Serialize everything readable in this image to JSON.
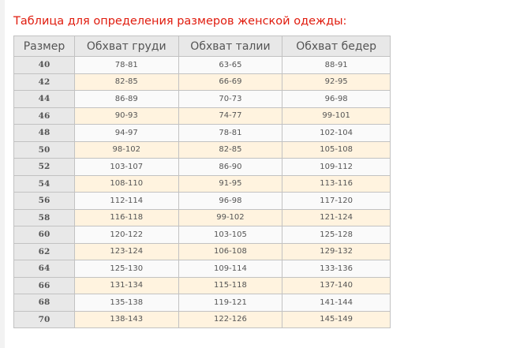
{
  "title": "Таблица для определения размеров женской одежды:",
  "colors": {
    "title": "#e01b0d",
    "header_bg": "#e8e8e8",
    "row_alt": "#fff3df",
    "row": "#fafafa"
  },
  "headers": [
    "Размер",
    "Обхват груди",
    "Обхват талии",
    "Обхват бедер"
  ],
  "rows": [
    [
      "40",
      "78-81",
      "63-65",
      "88-91"
    ],
    [
      "42",
      "82-85",
      "66-69",
      "92-95"
    ],
    [
      "44",
      "86-89",
      "70-73",
      "96-98"
    ],
    [
      "46",
      "90-93",
      "74-77",
      "99-101"
    ],
    [
      "48",
      "94-97",
      "78-81",
      "102-104"
    ],
    [
      "50",
      "98-102",
      "82-85",
      "105-108"
    ],
    [
      "52",
      "103-107",
      "86-90",
      "109-112"
    ],
    [
      "54",
      "108-110",
      "91-95",
      "113-116"
    ],
    [
      "56",
      "112-114",
      "96-98",
      "117-120"
    ],
    [
      "58",
      "116-118",
      "99-102",
      "121-124"
    ],
    [
      "60",
      "120-122",
      "103-105",
      "125-128"
    ],
    [
      "62",
      "123-124",
      "106-108",
      "129-132"
    ],
    [
      "64",
      "125-130",
      "109-114",
      "133-136"
    ],
    [
      "66",
      "131-134",
      "115-118",
      "137-140"
    ],
    [
      "68",
      "135-138",
      "119-121",
      "141-144"
    ],
    [
      "70",
      "138-143",
      "122-126",
      "145-149"
    ]
  ]
}
